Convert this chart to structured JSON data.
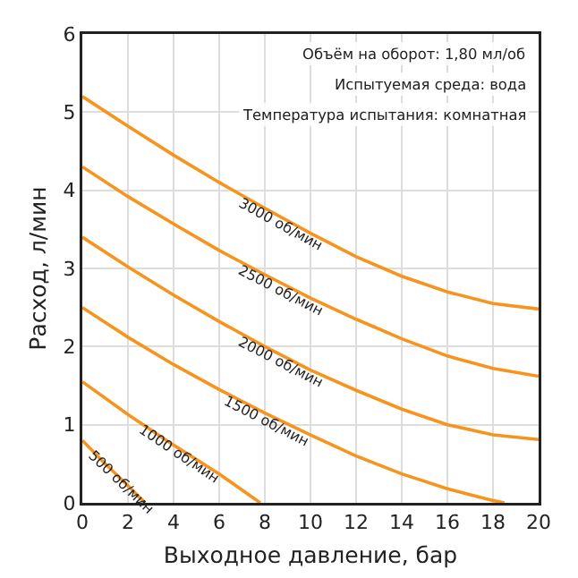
{
  "chart_data": {
    "type": "line",
    "xlabel": "Выходное давление, бар",
    "ylabel": "Расход, л/мин",
    "xlim": [
      0,
      20
    ],
    "xticks": [
      0,
      2,
      4,
      6,
      8,
      10,
      12,
      14,
      16,
      18,
      20
    ],
    "ylim": [
      0,
      6
    ],
    "yticks": [
      0,
      1,
      2,
      3,
      4,
      5,
      6
    ],
    "grid": true,
    "legend": false,
    "marker": "none",
    "line_style": "solid",
    "annotations": [
      "Объём на оборот: 1,80 мл/об",
      "Испытуемая среда: вода",
      "Температура испытания: комнатная"
    ],
    "series": [
      {
        "name": "3000 об/мин",
        "color": "#f7941d",
        "x": [
          0,
          2,
          4,
          6,
          8,
          10,
          12,
          14,
          16,
          18,
          20
        ],
        "values": [
          5.2,
          4.82,
          4.45,
          4.1,
          3.77,
          3.45,
          3.15,
          2.9,
          2.7,
          2.55,
          2.48
        ]
      },
      {
        "name": "2500 об/мин",
        "color": "#f7941d",
        "x": [
          0,
          2,
          4,
          6,
          8,
          10,
          12,
          14,
          16,
          18,
          20
        ],
        "values": [
          4.3,
          3.92,
          3.57,
          3.23,
          2.92,
          2.62,
          2.35,
          2.1,
          1.88,
          1.72,
          1.62
        ]
      },
      {
        "name": "2000 об/мин",
        "color": "#f7941d",
        "x": [
          0,
          2,
          4,
          6,
          8,
          10,
          12,
          14,
          16,
          18,
          20
        ],
        "values": [
          3.4,
          3.02,
          2.66,
          2.32,
          2.0,
          1.7,
          1.44,
          1.2,
          1.0,
          0.87,
          0.81
        ]
      },
      {
        "name": "1500 об/мин",
        "color": "#f7941d",
        "x": [
          0,
          2,
          4,
          6,
          8,
          10,
          12,
          14,
          16,
          18,
          18.5
        ],
        "values": [
          2.5,
          2.12,
          1.77,
          1.45,
          1.15,
          0.87,
          0.6,
          0.37,
          0.18,
          0.03,
          0
        ]
      },
      {
        "name": "1000 об/мин",
        "color": "#f7941d",
        "x": [
          0,
          2,
          4,
          6,
          7.8
        ],
        "values": [
          1.55,
          1.13,
          0.74,
          0.37,
          0
        ]
      },
      {
        "name": "500 об/мин",
        "color": "#f7941d",
        "x": [
          0,
          1,
          2,
          2.75
        ],
        "values": [
          0.8,
          0.5,
          0.22,
          0
        ]
      }
    ]
  }
}
